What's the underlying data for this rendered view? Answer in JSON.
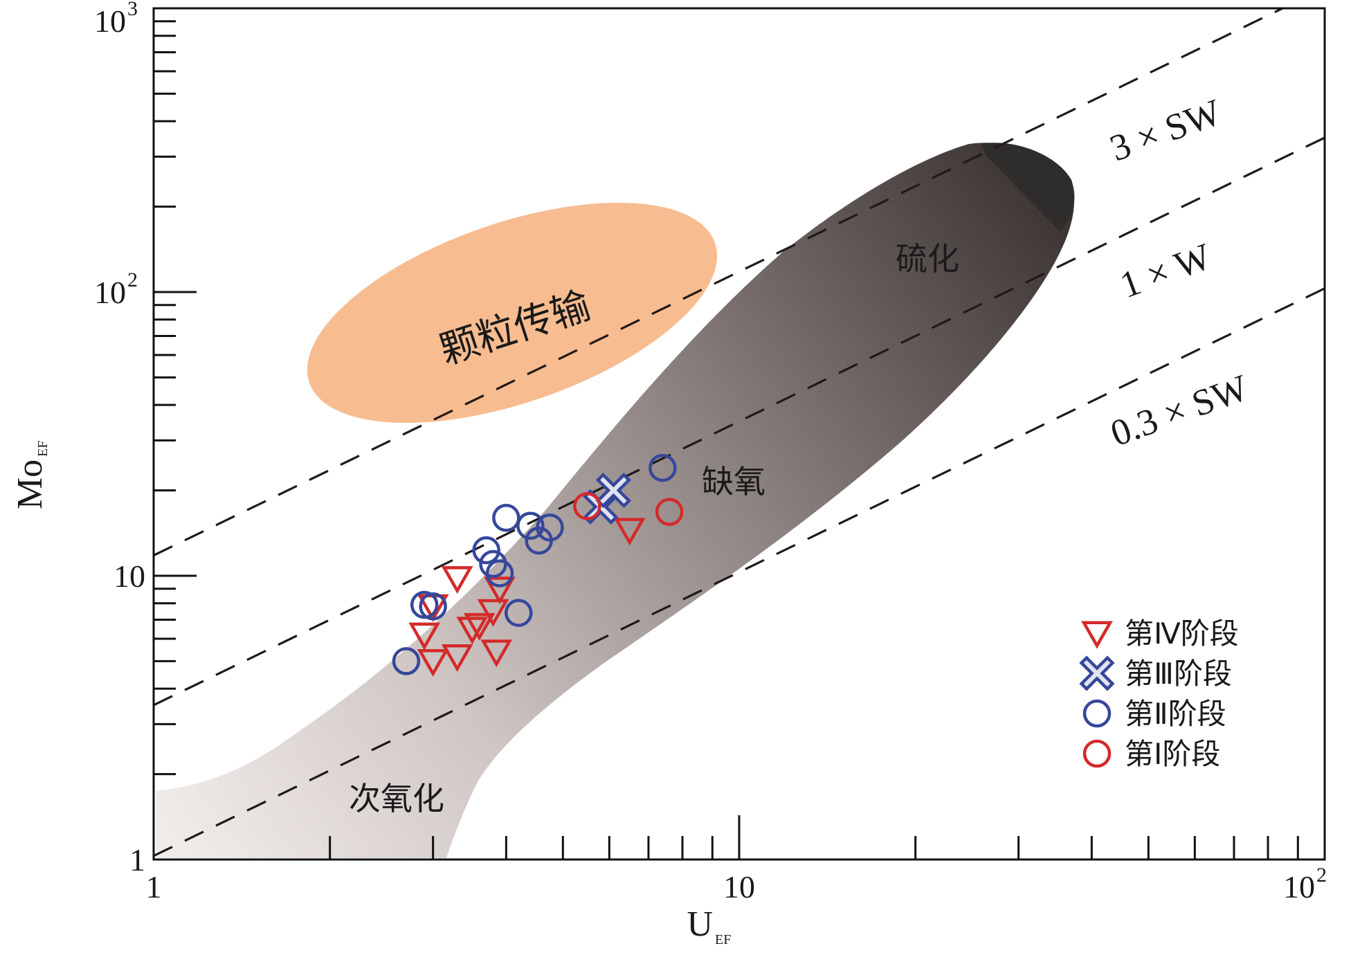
{
  "chart_data": {
    "type": "scatter",
    "xscale": "log",
    "yscale": "log",
    "xlim": [
      1,
      100
    ],
    "ylim": [
      1,
      1000
    ],
    "xlabel": "U",
    "xlabel_sub": "EF",
    "ylabel": "Mo",
    "ylabel_sub": "EF",
    "x_major_ticks": [
      {
        "value": 1,
        "base": "1",
        "exp": ""
      },
      {
        "value": 10,
        "base": "10",
        "exp": ""
      },
      {
        "value": 100,
        "base": "10",
        "exp": "2"
      }
    ],
    "y_major_ticks": [
      {
        "value": 1,
        "base": "1",
        "exp": ""
      },
      {
        "value": 10,
        "base": "10",
        "exp": ""
      },
      {
        "value": 100,
        "base": "10",
        "exp": "2"
      },
      {
        "value": 1000,
        "base": "10",
        "exp": "3"
      }
    ],
    "reference_lines": [
      {
        "label": "3 × SW",
        "ratio": 11.8,
        "x_range": [
          1,
          90
        ]
      },
      {
        "label": "1 × W",
        "ratio": 3.5,
        "x_range": [
          1,
          100
        ]
      },
      {
        "label": "0.3 × SW",
        "ratio": 1.03,
        "x_range": [
          1,
          100
        ]
      }
    ],
    "zones": {
      "particulate_shuttle": "颗粒传输",
      "euxinic": "硫化",
      "anoxic": "缺氧",
      "suboxic": "次氧化"
    },
    "legend_position": "bottom-right",
    "series": [
      {
        "name": "第Ⅳ阶段",
        "marker": "triangle-down",
        "color": "#d42a2a",
        "points": [
          [
            3.3,
            9.8
          ],
          [
            3.0,
            7.8
          ],
          [
            2.9,
            6.2
          ],
          [
            3.0,
            5.0
          ],
          [
            3.3,
            5.2
          ],
          [
            3.5,
            6.5
          ],
          [
            3.6,
            6.7
          ],
          [
            3.8,
            7.5
          ],
          [
            3.9,
            9.0
          ],
          [
            3.85,
            5.4
          ],
          [
            6.5,
            14.5
          ]
        ]
      },
      {
        "name": "第Ⅲ阶段",
        "marker": "x",
        "color": "#36479b",
        "points": [
          [
            5.8,
            17.5
          ],
          [
            6.1,
            20.0
          ]
        ]
      },
      {
        "name": "第Ⅱ阶段",
        "marker": "circle",
        "color": "#36479b",
        "points": [
          [
            2.7,
            5.0
          ],
          [
            2.9,
            7.9
          ],
          [
            3.0,
            7.8
          ],
          [
            3.7,
            12.3
          ],
          [
            3.8,
            11.0
          ],
          [
            3.9,
            10.2
          ],
          [
            4.0,
            16.0
          ],
          [
            4.4,
            15.0
          ],
          [
            4.55,
            13.3
          ],
          [
            4.75,
            14.8
          ],
          [
            4.2,
            7.4
          ],
          [
            7.4,
            24.0
          ]
        ]
      },
      {
        "name": "第Ⅰ阶段",
        "marker": "circle",
        "color": "#d42a2a",
        "points": [
          [
            5.5,
            17.6
          ],
          [
            7.6,
            16.8
          ]
        ]
      }
    ]
  }
}
